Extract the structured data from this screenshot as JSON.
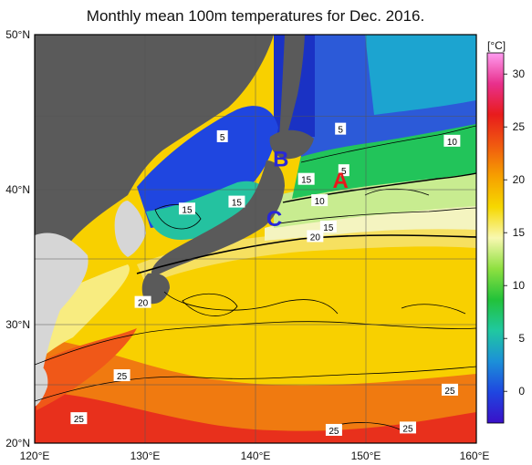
{
  "title": "Monthly mean 100m temperatures for Dec. 2016.",
  "colorbar": {
    "unit": "[°C]",
    "ticks": [
      "0",
      "5",
      "10",
      "15",
      "20",
      "25",
      "30"
    ],
    "tick_values": [
      0,
      5,
      10,
      15,
      20,
      25,
      30
    ],
    "range": [
      -3,
      32
    ],
    "stops": [
      "#3a10c8",
      "#1f46e0",
      "#1c90d8",
      "#20c8a0",
      "#22c23a",
      "#8ee040",
      "#f8f8b0",
      "#f6d800",
      "#f6a000",
      "#f05a10",
      "#e81c1c",
      "#e8308c",
      "#ff9cf0"
    ]
  },
  "axes": {
    "lon_labels": [
      "120°E",
      "130°E",
      "140°E",
      "150°E",
      "160°E"
    ],
    "lat_labels": [
      "50°N",
      "40°N",
      "30°N",
      "20°N"
    ]
  },
  "contour_labels": [
    {
      "text": "5",
      "lon": 137.0,
      "lat": 43.6
    },
    {
      "text": "5",
      "lon": 147.7,
      "lat": 44.1
    },
    {
      "text": "5",
      "lon": 148.0,
      "lat": 41.3
    },
    {
      "text": "10",
      "lon": 157.8,
      "lat": 43.3
    },
    {
      "text": "15",
      "lon": 133.8,
      "lat": 38.6
    },
    {
      "text": "15",
      "lon": 138.3,
      "lat": 39.1
    },
    {
      "text": "15",
      "lon": 144.6,
      "lat": 40.7
    },
    {
      "text": "10",
      "lon": 145.8,
      "lat": 39.2
    },
    {
      "text": "15",
      "lon": 146.6,
      "lat": 37.3
    },
    {
      "text": "20",
      "lon": 145.4,
      "lat": 36.6
    },
    {
      "text": "20",
      "lon": 129.8,
      "lat": 31.6
    },
    {
      "text": "25",
      "lon": 127.9,
      "lat": 25.7
    },
    {
      "text": "25",
      "lon": 124.0,
      "lat": 22.1
    },
    {
      "text": "25",
      "lon": 157.6,
      "lat": 24.5
    },
    {
      "text": "25",
      "lon": 153.8,
      "lat": 21.3
    },
    {
      "text": "25",
      "lon": 147.1,
      "lat": 21.1
    }
  ],
  "markers": [
    {
      "text": "A",
      "lon": 147.7,
      "lat": 40.6,
      "color": "#e8181c"
    },
    {
      "text": "B",
      "lon": 142.3,
      "lat": 42.1,
      "color": "#2828d8"
    },
    {
      "text": "C",
      "lon": 141.7,
      "lat": 37.9,
      "color": "#2828d8"
    }
  ]
}
